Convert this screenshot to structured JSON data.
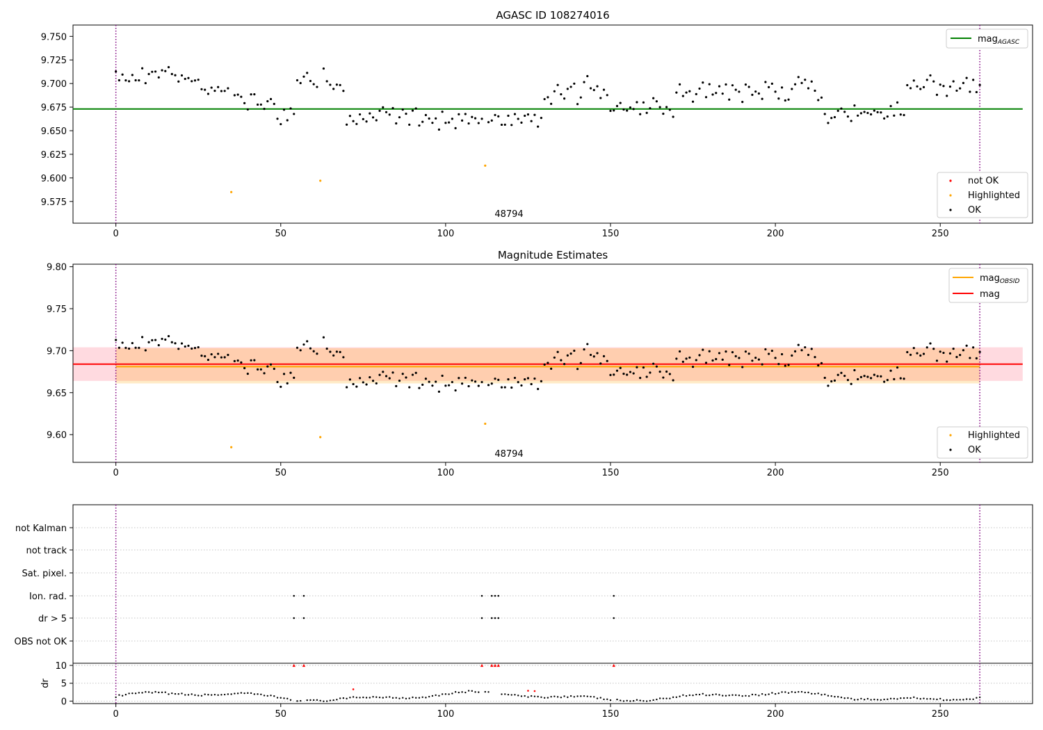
{
  "chart_data": [
    {
      "type": "scatter",
      "title": "AGASC ID 108274016",
      "annotation": "48794",
      "xlim": [
        -13,
        278
      ],
      "ylim": [
        9.552,
        9.762
      ],
      "xticks": [
        0,
        50,
        100,
        150,
        200,
        250,
        300
      ],
      "yticks": [
        9.575,
        9.6,
        9.625,
        9.65,
        9.675,
        9.7,
        9.725,
        9.75
      ],
      "ytick_labels": [
        "9.575",
        "9.600",
        "9.625",
        "9.650",
        "9.675",
        "9.700",
        "9.725",
        "9.750"
      ],
      "vlines": [
        0,
        262
      ],
      "hline": {
        "y": 9.673,
        "x0": -13,
        "x1": 275,
        "color": "#008000"
      },
      "line_legend": {
        "placement": "top-right",
        "entries": [
          {
            "name": "mag",
            "sub": "AGASC",
            "color": "#008000"
          }
        ]
      },
      "marker_legend": {
        "placement": "bottom-right",
        "entries": [
          {
            "name": "not OK",
            "color": "#ff0000"
          },
          {
            "name": "Highlighted",
            "color": "#ffa500"
          },
          {
            "name": "OK",
            "color": "#000000"
          }
        ]
      },
      "highlighted": [
        [
          35,
          9.585
        ],
        [
          62,
          9.597
        ],
        [
          112,
          9.613
        ]
      ]
    },
    {
      "type": "scatter",
      "title": "Magnitude Estimates",
      "annotation": "48794",
      "xlim": [
        -13,
        278
      ],
      "ylim": [
        9.567,
        9.803
      ],
      "xticks": [
        0,
        50,
        100,
        150,
        200,
        250,
        300
      ],
      "yticks": [
        9.6,
        9.65,
        9.7,
        9.75,
        9.8
      ],
      "ytick_labels": [
        "9.60",
        "9.65",
        "9.70",
        "9.75",
        "9.80"
      ],
      "vlines": [
        0,
        262
      ],
      "band_mag": {
        "y0": 9.664,
        "y1": 9.704,
        "x0": -13,
        "x1": 275,
        "color": "#ffb6c1"
      },
      "band_obsid": {
        "y0": 9.661,
        "y1": 9.703,
        "x0": 0,
        "x1": 262,
        "color": "#ffa500"
      },
      "lines": [
        {
          "name": "mag",
          "sub": "OBSID",
          "y": 9.681,
          "x0": 0,
          "x1": 262,
          "color": "#ffa500"
        },
        {
          "name": "mag",
          "y": 9.684,
          "x0": -13,
          "x1": 275,
          "color": "#ff0000"
        }
      ],
      "line_legend": {
        "placement": "top-right"
      },
      "marker_legend": {
        "placement": "bottom-right",
        "entries": [
          {
            "name": "Highlighted",
            "color": "#ffa500"
          },
          {
            "name": "OK",
            "color": "#000000"
          }
        ]
      },
      "highlighted": [
        [
          35,
          9.585
        ],
        [
          62,
          9.597
        ],
        [
          112,
          9.613
        ]
      ]
    },
    {
      "type": "scatter",
      "xlim": [
        -13,
        278
      ],
      "xticks": [
        0,
        50,
        100,
        150,
        200,
        250,
        300
      ],
      "vlines": [
        0,
        262
      ],
      "flag_rows": [
        "not Kalman",
        "not track",
        "Sat. pixel.",
        "Ion. rad.",
        "dr > 5",
        "OBS not OK"
      ],
      "flag_points": {
        "Ion. rad.": [
          54,
          57,
          111,
          114,
          115,
          116,
          151
        ],
        "dr > 5": [
          54,
          57,
          111,
          114,
          115,
          116,
          151
        ]
      },
      "dr_ylabel": "dr",
      "dr_ylim": [
        -0.7,
        10.6
      ],
      "dr_yticks": [
        0,
        5,
        10
      ],
      "dr_ytick_labels": [
        "0",
        "5",
        "10"
      ],
      "dr_clipped": [
        54,
        57,
        111,
        114,
        115,
        116,
        151
      ],
      "dr_red_points": [
        [
          72,
          3.3
        ],
        [
          125,
          2.9
        ],
        [
          127,
          2.8
        ]
      ]
    }
  ],
  "colors": {
    "ok": "#000000",
    "highlighted": "#ffa500",
    "not_ok": "#ff0000",
    "vline": "#800080",
    "grid": "#b0b0b0"
  }
}
